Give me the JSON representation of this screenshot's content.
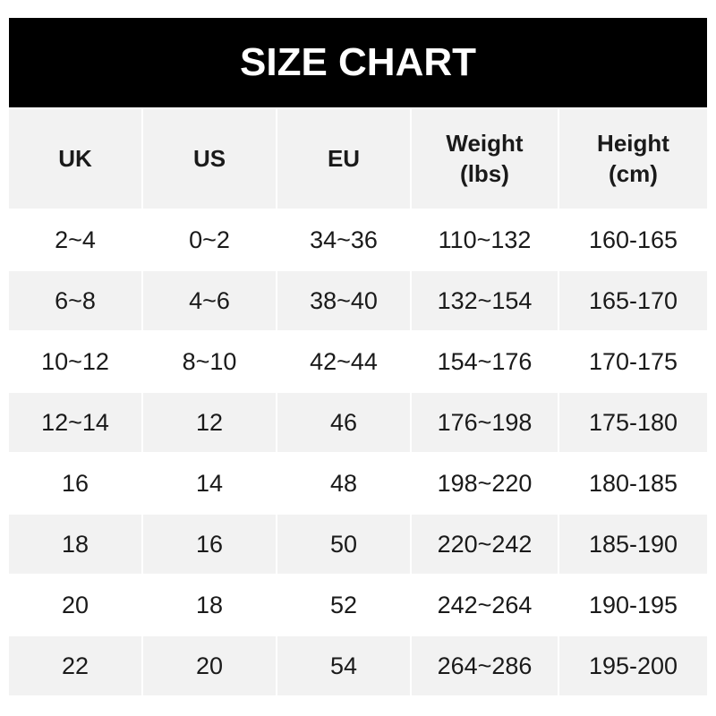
{
  "title": "SIZE CHART",
  "headers": [
    "UK",
    "US",
    "EU",
    "Weight\n(lbs)",
    "Height\n(cm)"
  ],
  "rows": [
    [
      "2~4",
      "0~2",
      "34~36",
      "110~132",
      "160-165"
    ],
    [
      "6~8",
      "4~6",
      "38~40",
      "132~154",
      "165-170"
    ],
    [
      "10~12",
      "8~10",
      "42~44",
      "154~176",
      "170-175"
    ],
    [
      "12~14",
      "12",
      "46",
      "176~198",
      "175-180"
    ],
    [
      "16",
      "14",
      "48",
      "198~220",
      "180-185"
    ],
    [
      "18",
      "16",
      "50",
      "220~242",
      "185-190"
    ],
    [
      "20",
      "18",
      "52",
      "242~264",
      "190-195"
    ],
    [
      "22",
      "20",
      "54",
      "264~286",
      "195-200"
    ]
  ]
}
